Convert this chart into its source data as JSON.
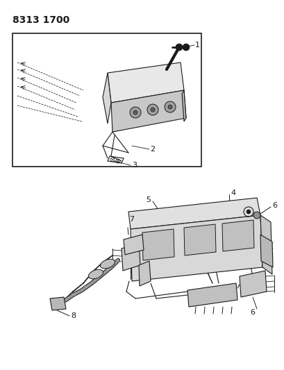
{
  "title": "8313 1700",
  "bg_color": "#ffffff",
  "lc": "#1a1a1a",
  "lw": 0.7,
  "fig_width": 4.1,
  "fig_height": 5.33,
  "dpi": 100,
  "label_fs": 7.5,
  "title_fs": 10
}
